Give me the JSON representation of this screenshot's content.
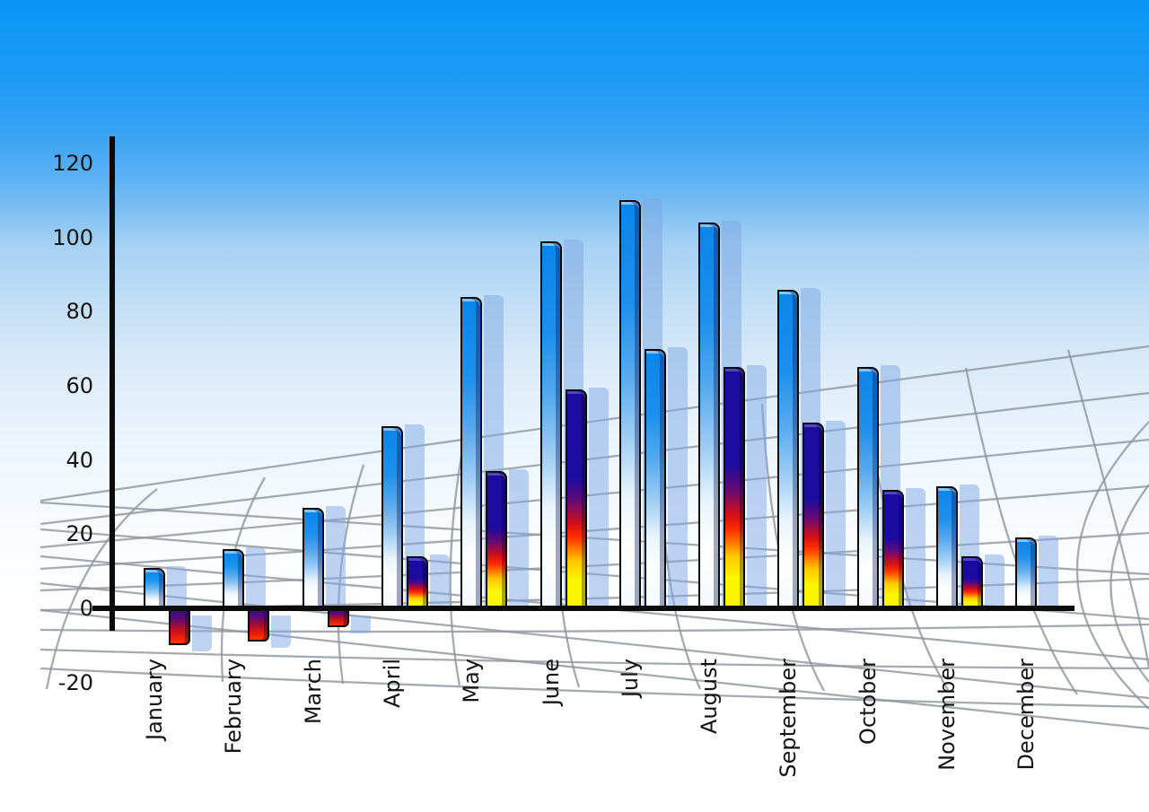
{
  "chart_data": {
    "type": "bar",
    "title": "",
    "xlabel": "",
    "ylabel": "",
    "categories": [
      "January",
      "February",
      "March",
      "April",
      "May",
      "June",
      "July",
      "August",
      "September",
      "October",
      "November",
      "December"
    ],
    "series": [
      {
        "name": "series-1-blue-bars",
        "values": [
          11,
          16,
          27,
          49,
          84,
          99,
          110,
          104,
          86,
          65,
          33,
          19
        ]
      },
      {
        "name": "series-2-flame-gradient-bars",
        "values": [
          -10,
          -9,
          -5,
          14,
          37,
          59,
          70,
          65,
          50,
          32,
          14,
          null
        ]
      }
    ],
    "series2_style_exceptions": {
      "July": "blue"
    },
    "ylim": [
      -20,
      120
    ],
    "yticks": [
      120,
      100,
      80,
      60,
      40,
      20,
      0,
      -20
    ],
    "ytick_step": 20,
    "legend": "none",
    "grid": "decorative curved gray perspective net behind bars",
    "x_label_rotation": "vertical, reading bottom to top",
    "extra_bars": "each bar casts a translucent light-blue offset shadow bar to its right"
  },
  "colors": {
    "sky_top": "#0a96f6",
    "sky_bottom": "#ffffff",
    "bar_blue_top": "#0a85ea",
    "bar_blue_bottom": "#ffffff",
    "flame_navy": "#1c0ba0",
    "flame_red": "#e81007",
    "flame_yellow": "#fcf500",
    "negative_navy": "#2e0d96",
    "negative_red_orange": "#ff3c00",
    "shadow_bar": "rgba(125,168,228,0.5)",
    "axis": "#0b0b0b",
    "grid_line": "#8e959c",
    "label_text": "#141414"
  }
}
